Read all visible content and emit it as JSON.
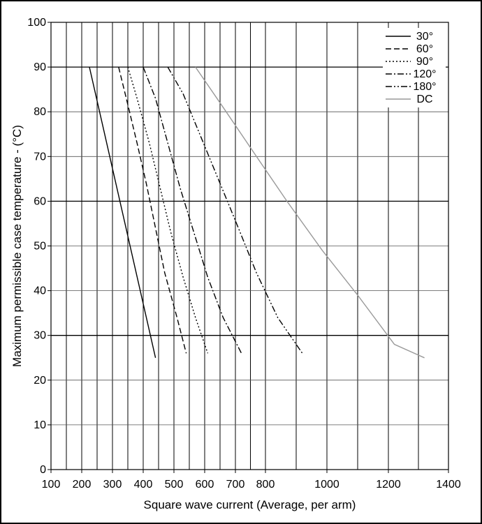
{
  "chart_data": {
    "type": "line",
    "title": "",
    "xlabel": "Square wave current (Average, per arm)",
    "ylabel": "Maximum permissible case temperature - (°C)",
    "xlim": [
      100,
      1400
    ],
    "ylim": [
      0,
      100
    ],
    "x_ticks": [
      "100",
      "200",
      "300",
      "400",
      "500",
      "600",
      "700",
      "800",
      "1000",
      "1200",
      "1400"
    ],
    "x_tick_values": [
      100,
      200,
      300,
      400,
      500,
      600,
      700,
      800,
      1000,
      1200,
      1400
    ],
    "y_ticks": [
      "0",
      "10",
      "20",
      "30",
      "40",
      "50",
      "60",
      "70",
      "80",
      "90",
      "100"
    ],
    "y_tick_values": [
      0,
      10,
      20,
      30,
      40,
      50,
      60,
      70,
      80,
      90,
      100
    ],
    "grid": true,
    "legend_position": "top-right",
    "series": [
      {
        "name": "30°",
        "style": "solid",
        "color": "#000000",
        "points": [
          [
            225,
            90
          ],
          [
            440,
            25
          ]
        ]
      },
      {
        "name": "60°",
        "style": "dashed",
        "color": "#000000",
        "points": [
          [
            320,
            90
          ],
          [
            345,
            83
          ],
          [
            380,
            73
          ],
          [
            410,
            64
          ],
          [
            440,
            54
          ],
          [
            470,
            44
          ],
          [
            510,
            34
          ],
          [
            540,
            26
          ]
        ]
      },
      {
        "name": "90°",
        "style": "dotted",
        "color": "#000000",
        "points": [
          [
            350,
            90
          ],
          [
            380,
            83
          ],
          [
            420,
            73
          ],
          [
            455,
            63
          ],
          [
            490,
            53
          ],
          [
            530,
            43
          ],
          [
            570,
            34
          ],
          [
            610,
            26
          ]
        ]
      },
      {
        "name": "120°",
        "style": "dash-dot",
        "color": "#000000",
        "points": [
          [
            400,
            90
          ],
          [
            440,
            83
          ],
          [
            480,
            73
          ],
          [
            520,
            63
          ],
          [
            565,
            53
          ],
          [
            610,
            43
          ],
          [
            660,
            34
          ],
          [
            720,
            26
          ]
        ]
      },
      {
        "name": "180°",
        "style": "dash-dot-dot",
        "color": "#000000",
        "points": [
          [
            480,
            90
          ],
          [
            530,
            84
          ],
          [
            590,
            74
          ],
          [
            650,
            64
          ],
          [
            710,
            54
          ],
          [
            770,
            44
          ],
          [
            840,
            34
          ],
          [
            920,
            26
          ]
        ]
      },
      {
        "name": "DC",
        "style": "solid",
        "color": "#999999",
        "points": [
          [
            570,
            90
          ],
          [
            660,
            81
          ],
          [
            760,
            71
          ],
          [
            870,
            60
          ],
          [
            985,
            49
          ],
          [
            1100,
            39
          ],
          [
            1220,
            28
          ],
          [
            1320,
            25
          ]
        ]
      }
    ]
  }
}
